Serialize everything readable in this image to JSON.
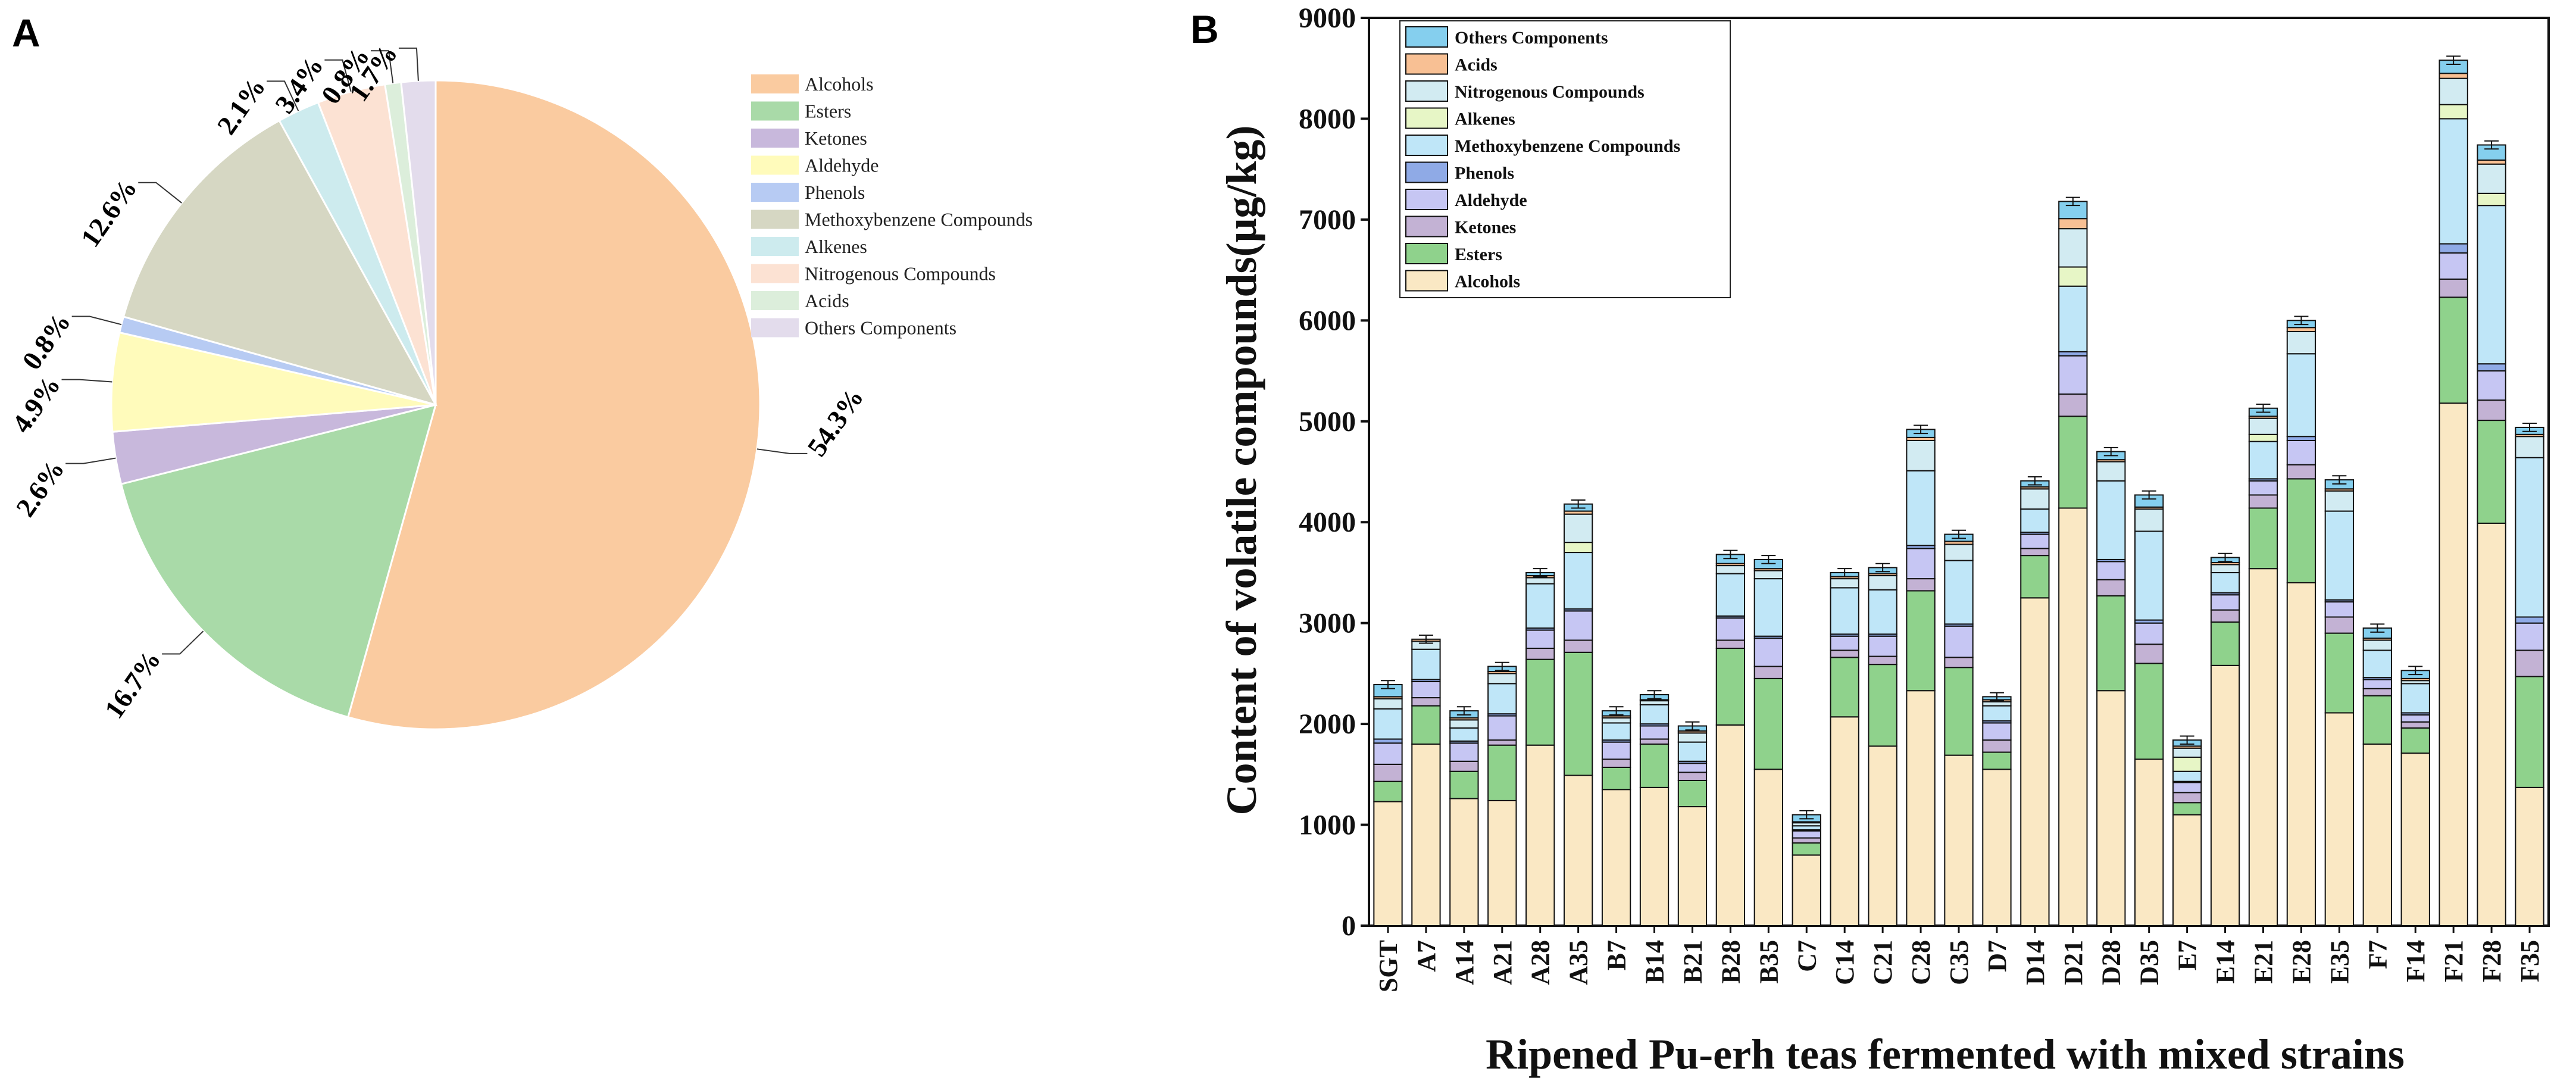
{
  "chart_data": [
    {
      "panel": "A",
      "type": "pie",
      "slices": [
        {
          "name": "Alcohols",
          "value": 54.3,
          "label": "54.3%",
          "color": "#FACBA0"
        },
        {
          "name": "Esters",
          "value": 16.7,
          "label": "16.7%",
          "color": "#A9DAA8"
        },
        {
          "name": "Ketones",
          "value": 2.6,
          "label": "2.6%",
          "color": "#C8B8DC"
        },
        {
          "name": "Aldehyde",
          "value": 4.9,
          "label": "4.9%",
          "color": "#FFFBBB"
        },
        {
          "name": "Phenols",
          "value": 0.8,
          "label": "0.8%",
          "color": "#B7CBF3"
        },
        {
          "name": "Methoxybenzene Compounds",
          "value": 12.6,
          "label": "12.6%",
          "color": "#D6D7C3"
        },
        {
          "name": "Alkenes",
          "value": 2.1,
          "label": "2.1%",
          "color": "#CDEBEE"
        },
        {
          "name": "Nitrogenous  Compounds",
          "value": 3.4,
          "label": "3.4%",
          "color": "#FCE2D3"
        },
        {
          "name": "Acids",
          "value": 0.8,
          "label": "0.8%",
          "color": "#DCEEDB"
        },
        {
          "name": "Others Components",
          "value": 1.7,
          "label": "1.7%",
          "color": "#E3DCEC"
        }
      ]
    },
    {
      "panel": "B",
      "type": "bar",
      "stacked": true,
      "ylabel": "Content of volatile compounds(μg/kg)",
      "xlabel": "Ripened Pu-erh  teas fermented with mixed strains",
      "ylim": [
        0,
        9000
      ],
      "yticks": [
        "0",
        "1000",
        "2000",
        "3000",
        "4000",
        "5000",
        "6000",
        "7000",
        "8000",
        "9000"
      ],
      "categories": [
        "SGT",
        "A7",
        "A14",
        "A21",
        "A28",
        "A35",
        "B7",
        "B14",
        "B21",
        "B28",
        "B35",
        "C7",
        "C14",
        "C21",
        "C28",
        "C35",
        "D7",
        "D14",
        "D21",
        "D28",
        "D35",
        "E7",
        "E14",
        "E21",
        "E28",
        "E35",
        "F7",
        "F14",
        "F21",
        "F28",
        "F35"
      ],
      "series": [
        {
          "name": "Alcohols",
          "color": "#FAE8C4",
          "values": [
            1230,
            1800,
            1260,
            1240,
            1790,
            1490,
            1350,
            1370,
            1180,
            1990,
            1550,
            700,
            2070,
            1780,
            2330,
            1690,
            1550,
            3250,
            4140,
            2330,
            1650,
            1100,
            2580,
            3540,
            3400,
            2110,
            1800,
            1710,
            5180,
            3990,
            1370
          ]
        },
        {
          "name": "Esters",
          "color": "#8FD28C",
          "values": [
            200,
            380,
            270,
            550,
            850,
            1220,
            220,
            430,
            260,
            760,
            900,
            120,
            590,
            810,
            990,
            870,
            170,
            420,
            910,
            940,
            950,
            120,
            430,
            600,
            1030,
            790,
            480,
            250,
            1050,
            1020,
            1100
          ]
        },
        {
          "name": "Ketones",
          "color": "#C3B2D4",
          "values": [
            170,
            80,
            100,
            50,
            110,
            120,
            80,
            50,
            80,
            80,
            120,
            50,
            70,
            80,
            120,
            100,
            120,
            70,
            220,
            160,
            190,
            100,
            120,
            130,
            140,
            160,
            70,
            60,
            180,
            200,
            260
          ]
        },
        {
          "name": "Aldehyde",
          "color": "#C6C6F3",
          "values": [
            210,
            160,
            180,
            240,
            180,
            290,
            170,
            130,
            90,
            220,
            280,
            70,
            140,
            200,
            300,
            310,
            170,
            140,
            380,
            180,
            210,
            100,
            150,
            140,
            240,
            150,
            90,
            70,
            260,
            290,
            270
          ]
        },
        {
          "name": "Phenols",
          "color": "#8FAAE6",
          "values": [
            40,
            20,
            20,
            20,
            20,
            20,
            20,
            20,
            20,
            20,
            20,
            10,
            20,
            20,
            30,
            20,
            20,
            20,
            40,
            20,
            30,
            10,
            20,
            20,
            40,
            20,
            20,
            20,
            90,
            70,
            60
          ]
        },
        {
          "name": "Methoxybenzene Compounds",
          "color": "#BFE6F8",
          "values": [
            300,
            300,
            130,
            300,
            440,
            560,
            170,
            190,
            190,
            420,
            570,
            40,
            460,
            440,
            740,
            630,
            150,
            230,
            650,
            780,
            880,
            100,
            200,
            370,
            820,
            880,
            270,
            290,
            1240,
            1570,
            1580
          ]
        },
        {
          "name": "Alkenes",
          "color": "#E7F6C6",
          "values": [
            0,
            0,
            0,
            0,
            0,
            100,
            0,
            0,
            0,
            0,
            0,
            0,
            0,
            0,
            0,
            0,
            0,
            0,
            190,
            0,
            0,
            140,
            0,
            70,
            0,
            0,
            0,
            0,
            140,
            120,
            0
          ]
        },
        {
          "name": "Nitrogenous  Compounds",
          "color": "#D2EBF2",
          "values": [
            100,
            80,
            80,
            100,
            60,
            280,
            50,
            40,
            90,
            80,
            80,
            30,
            90,
            140,
            300,
            160,
            40,
            200,
            380,
            190,
            220,
            90,
            80,
            160,
            220,
            200,
            100,
            30,
            260,
            290,
            210
          ]
        },
        {
          "name": "Acids",
          "color": "#F8C094",
          "values": [
            20,
            20,
            20,
            20,
            20,
            30,
            20,
            10,
            20,
            20,
            20,
            10,
            20,
            20,
            30,
            30,
            20,
            20,
            100,
            20,
            20,
            20,
            20,
            20,
            40,
            20,
            20,
            20,
            50,
            40,
            20
          ]
        },
        {
          "name": "Others Components",
          "color": "#85CFEE",
          "values": [
            120,
            0,
            70,
            50,
            30,
            70,
            50,
            50,
            50,
            90,
            90,
            70,
            40,
            60,
            80,
            70,
            30,
            60,
            170,
            80,
            120,
            60,
            50,
            80,
            70,
            90,
            100,
            80,
            130,
            150,
            70
          ]
        }
      ]
    }
  ],
  "panel_a_label": "A",
  "panel_b_label": "B",
  "legend_a": [
    "Alcohols",
    "Esters",
    "Ketones",
    "Aldehyde",
    "Phenols",
    "Methoxybenzene Compounds",
    "Alkenes",
    "Nitrogenous  Compounds",
    "Acids",
    "Others Components"
  ],
  "legend_b": [
    "Others Components",
    "Acids",
    "Nitrogenous  Compounds",
    "Alkenes",
    "Methoxybenzene Compounds",
    "Phenols",
    "Aldehyde",
    "Ketones",
    "Esters",
    "Alcohols"
  ]
}
